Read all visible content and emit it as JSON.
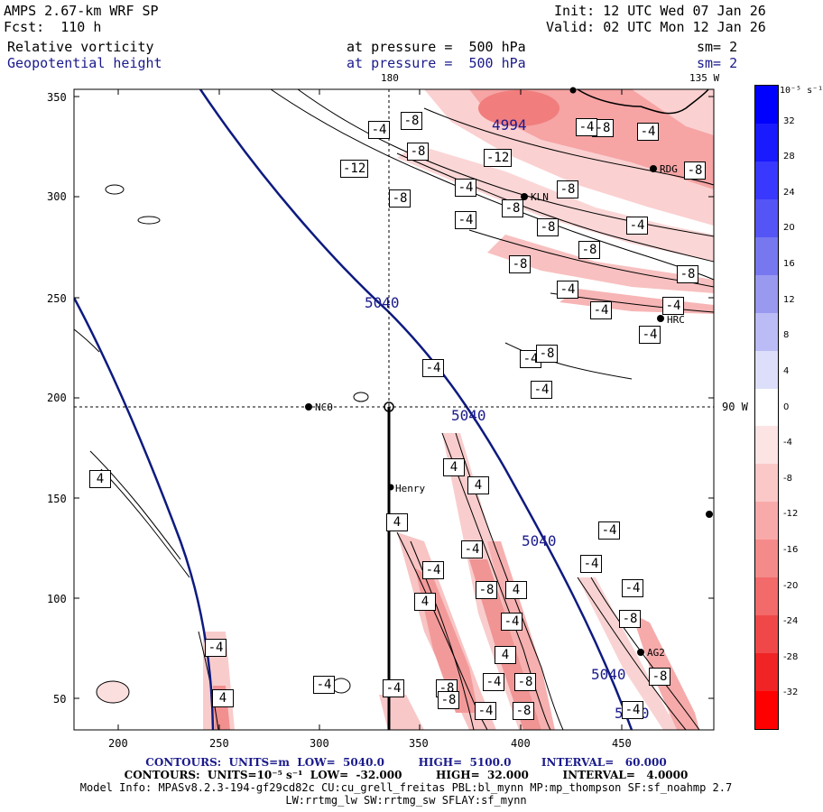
{
  "header": {
    "model": "AMPS 2.67-km WRF SP",
    "forecast": "Fcst:  110 h",
    "init": "Init: 12 UTC Wed 07 Jan 26",
    "valid": "Valid: 02 UTC Mon 12 Jan 26",
    "field1_name": "Relative vorticity",
    "field1_level": "at pressure =  500 hPa",
    "field1_smooth": "sm= 2",
    "field2_name": "Geopotential height",
    "field2_level": "at pressure =  500 hPa",
    "field2_smooth": "sm= 2"
  },
  "map": {
    "lon_label_180": "180",
    "lon_label_135w": "135 W",
    "lon_label_90w": "90 W",
    "x_ticks": [
      "200",
      "250",
      "300",
      "350",
      "400",
      "450"
    ],
    "y_ticks": [
      "350",
      "300",
      "250",
      "200",
      "150",
      "100",
      "50"
    ],
    "height_labels": [
      "5040",
      "5040",
      "5040",
      "5040",
      "5040",
      "4994"
    ],
    "stations": [
      "NCO",
      "Henry",
      "KLN",
      "RDG",
      "HRC",
      "AG2"
    ],
    "vorticity_labels": [
      "-4",
      "-8",
      "-8",
      "-12",
      "-12",
      "-8",
      "-4",
      "-8",
      "-8",
      "-4",
      "-8",
      "-8",
      "-4",
      "-8",
      "-4",
      "-8",
      "-8",
      "-8",
      "-4",
      "-4",
      "-4",
      "-4",
      "-4",
      "-4",
      "-4",
      "4",
      "4",
      "4",
      "4",
      "-4",
      "-4",
      "-4",
      "-4",
      "-8",
      "4",
      "4",
      "-4",
      "-4",
      "-8",
      "4",
      "-4",
      "-4",
      "-8",
      "-8",
      "-4",
      "-4",
      "-8",
      "4",
      "-4",
      "-8",
      "-4",
      "-8",
      "-8",
      "-4"
    ],
    "colors": {
      "height_contour": "#0d1a80",
      "negative_vorticity": "#e8403a",
      "positive_vorticity": "#3a4de8"
    }
  },
  "colorbar": {
    "unit": "10⁻⁵ s⁻¹",
    "labels": [
      "32",
      "28",
      "24",
      "20",
      "16",
      "12",
      "8",
      "4",
      "0",
      "-4",
      "-8",
      "-12",
      "-16",
      "-20",
      "-24",
      "-28",
      "-32"
    ],
    "colors": [
      "#0000ff",
      "#1a1aff",
      "#3838ff",
      "#5555f5",
      "#7777f0",
      "#9999f0",
      "#bbbbf5",
      "#dddffa",
      "#ffffff",
      "#fde4e4",
      "#fbc8c8",
      "#f8aaaa",
      "#f58a8a",
      "#f26a6a",
      "#f04848",
      "#f02424",
      "#ff0000"
    ]
  },
  "footer": {
    "line1": "CONTOURS:  UNITS=m  LOW=  5040.0         HIGH=  5100.0        INTERVAL=   60.000",
    "line2": "CONTOURS:  UNITS=10⁻⁵ s⁻¹  LOW=  -32.000         HIGH=  32.000         INTERVAL=   4.0000",
    "line3": "Model Info: MPASv8.2.3-194-gf29cd82c CU:cu_grell_freitas PBL:bl_mynn MP:mp_thompson SF:sf_noahmp 2.7",
    "line4": "LW:rrtmg_lw SW:rrtmg_sw SFLAY:sf_mynn"
  }
}
